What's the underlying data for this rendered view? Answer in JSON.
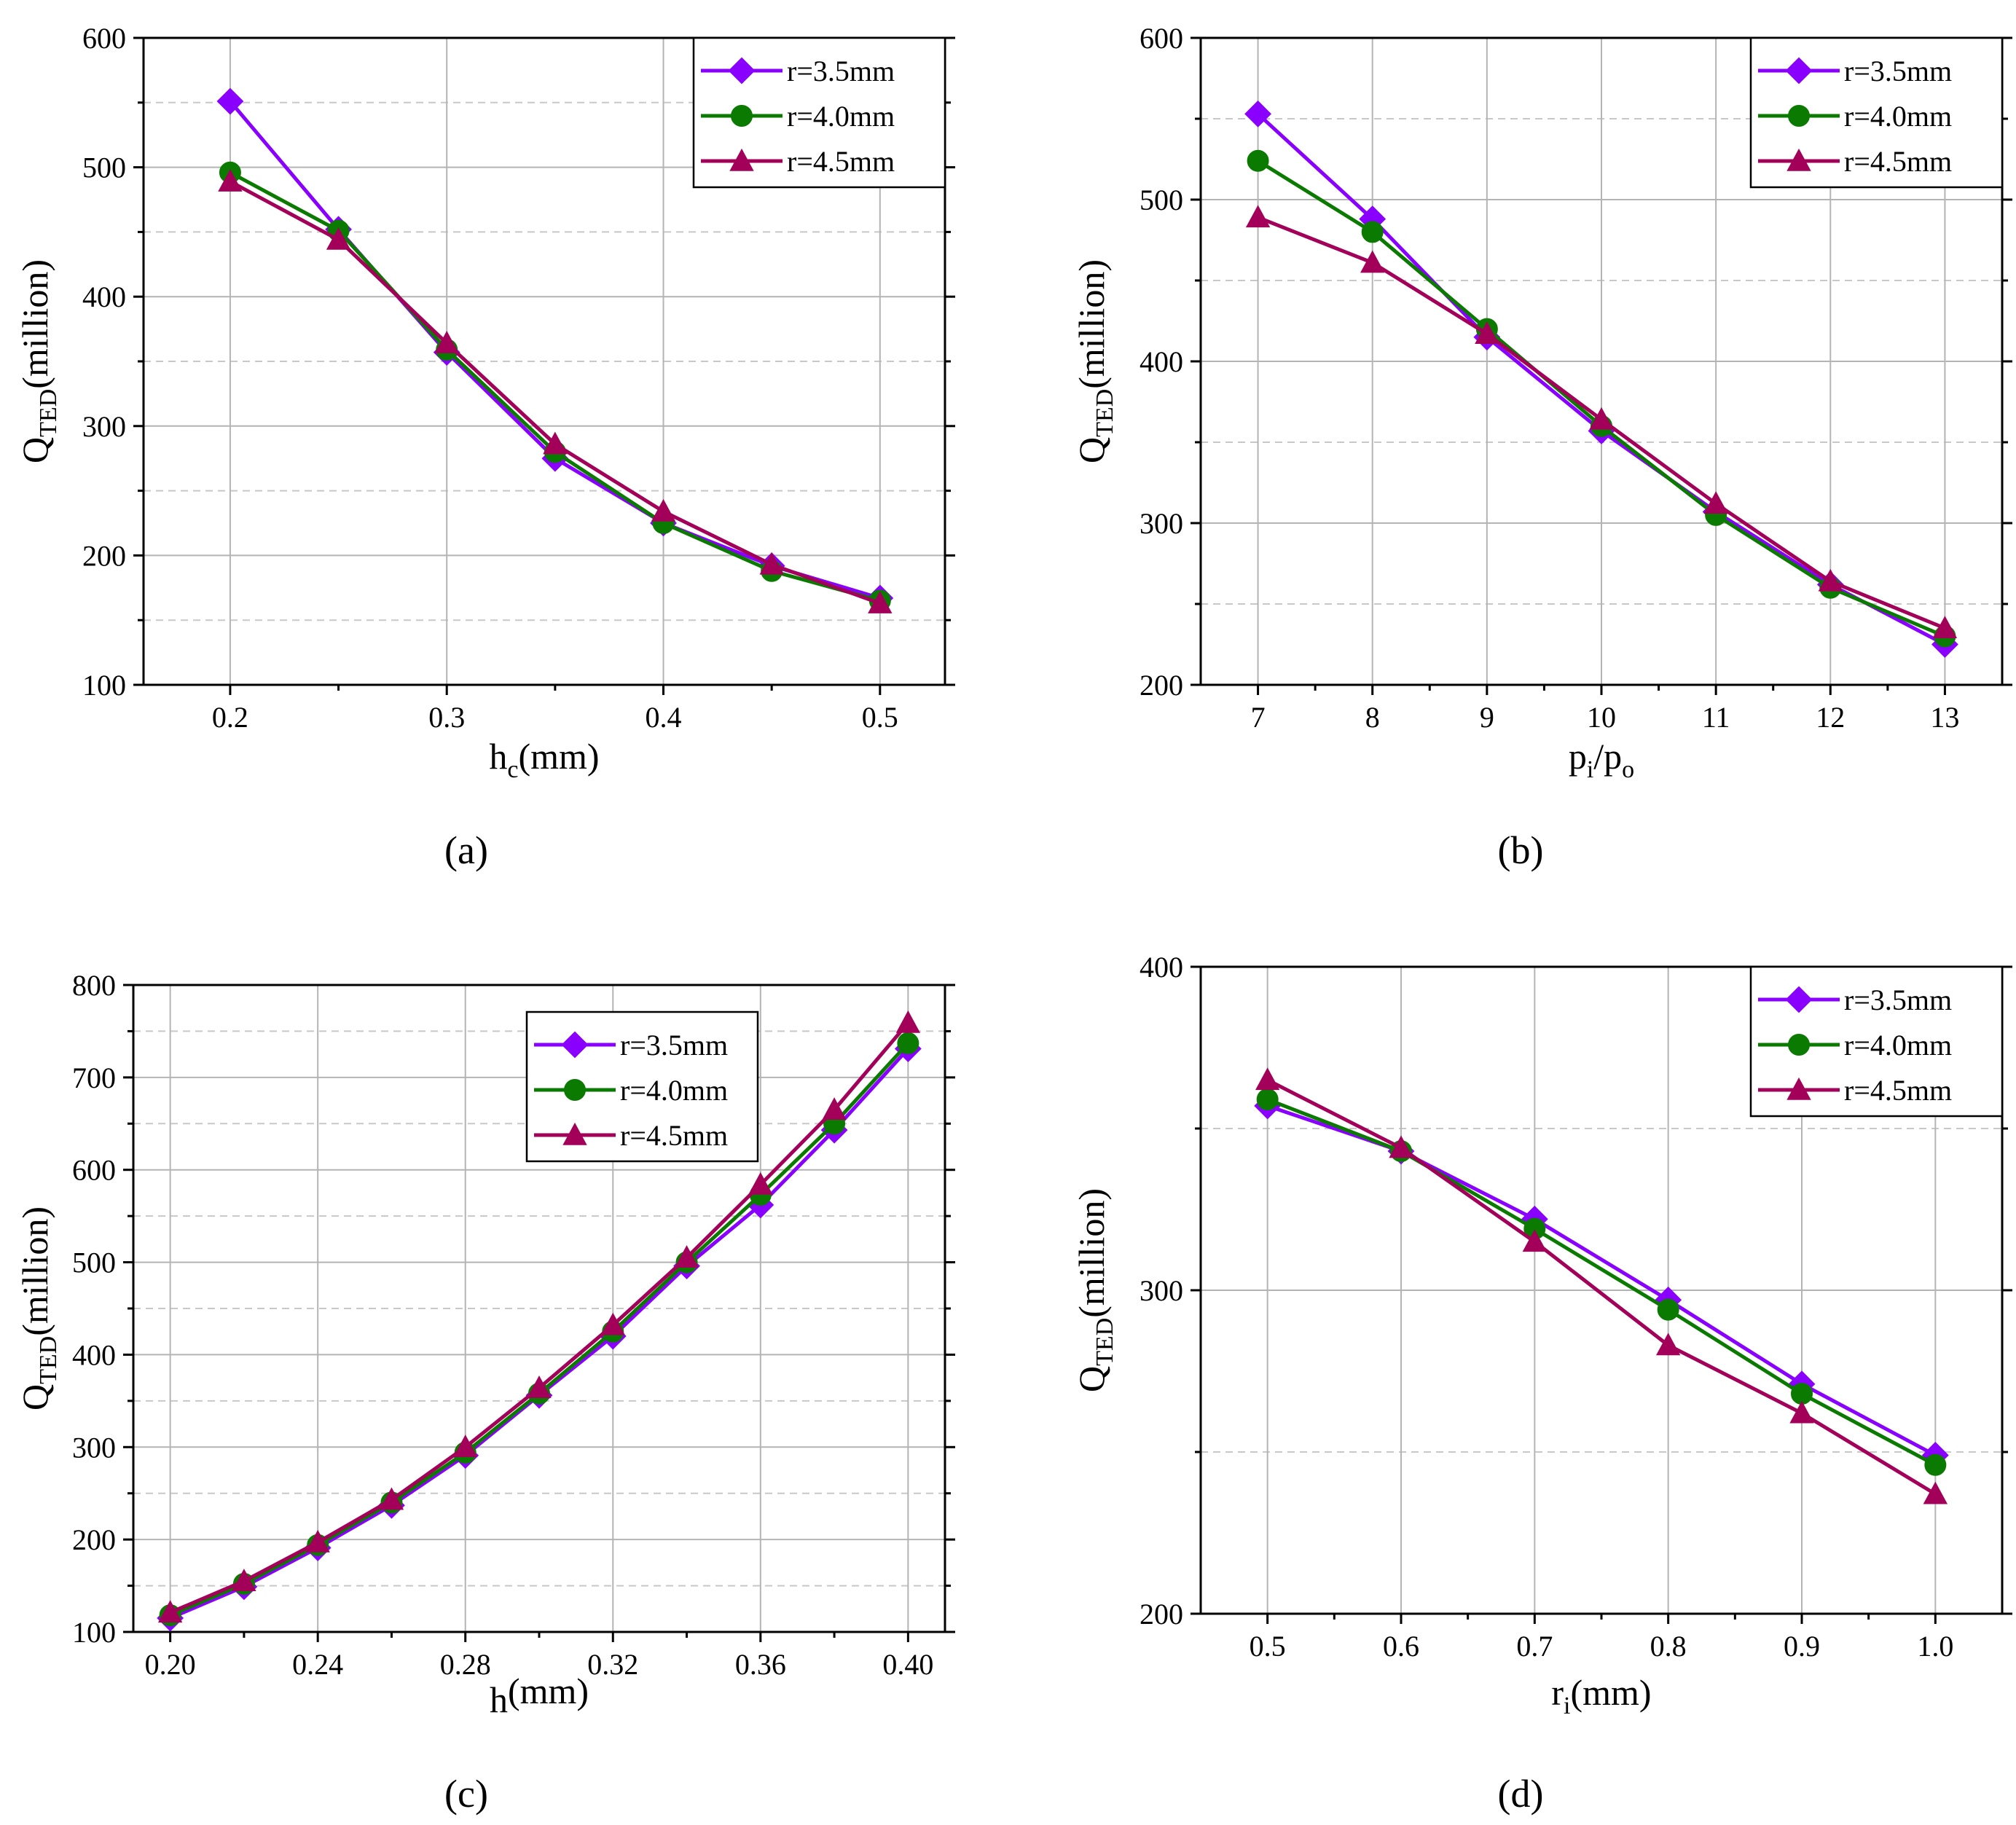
{
  "chart_data": [
    {
      "type": "line",
      "panel_label": "(a)",
      "xlabel": {
        "main": "h",
        "sub": "c",
        "unit": "(mm)"
      },
      "ylabel": {
        "main": "Q",
        "sub": "TED",
        "unit": "(million)"
      },
      "xlim": [
        0.16,
        0.53
      ],
      "ylim": [
        100,
        600
      ],
      "xticks": [
        0.2,
        0.3,
        0.4,
        0.5
      ],
      "xtick_labels": [
        "0.2",
        "0.3",
        "0.4",
        "0.5"
      ],
      "yticks": [
        100,
        200,
        300,
        400,
        500,
        600
      ],
      "ytick_labels": [
        "100",
        "200",
        "300",
        "400",
        "500",
        "600"
      ],
      "yminor": [
        150,
        250,
        350,
        450,
        550
      ],
      "legend": "top-right",
      "x": [
        0.2,
        0.25,
        0.3,
        0.35,
        0.4,
        0.45,
        0.5
      ],
      "series": [
        {
          "name": "r=3.5mm",
          "values": [
            551,
            452,
            357,
            275,
            225,
            192,
            167
          ]
        },
        {
          "name": "r=4.0mm",
          "values": [
            496,
            451,
            359,
            280,
            225,
            188,
            165
          ]
        },
        {
          "name": "r=4.5mm",
          "values": [
            489,
            444,
            364,
            286,
            234,
            193,
            163
          ]
        }
      ]
    },
    {
      "type": "line",
      "panel_label": "(b)",
      "xlabel": {
        "main": "p",
        "sub": "i",
        "mid": "/p",
        "sub2": "o"
      },
      "ylabel": {
        "main": "Q",
        "sub": "TED",
        "unit": "(million)"
      },
      "xlim": [
        6.5,
        13.5
      ],
      "ylim": [
        200,
        600
      ],
      "xticks": [
        7,
        8,
        9,
        10,
        11,
        12,
        13
      ],
      "xtick_labels": [
        "7",
        "8",
        "9",
        "10",
        "11",
        "12",
        "13"
      ],
      "yticks": [
        200,
        300,
        400,
        500,
        600
      ],
      "ytick_labels": [
        "200",
        "300",
        "400",
        "500",
        "600"
      ],
      "yminor": [
        250,
        350,
        450,
        550
      ],
      "legend": "top-right",
      "x": [
        7,
        8,
        9,
        10,
        11,
        12,
        13
      ],
      "series": [
        {
          "name": "r=3.5mm",
          "values": [
            553,
            488,
            415,
            357,
            307,
            262,
            225
          ]
        },
        {
          "name": "r=4.0mm",
          "values": [
            524,
            480,
            420,
            360,
            305,
            260,
            230
          ]
        },
        {
          "name": "r=4.5mm",
          "values": [
            489,
            461,
            417,
            364,
            312,
            264,
            235
          ]
        }
      ]
    },
    {
      "type": "line",
      "panel_label": "(c)",
      "xlabel": {
        "main": "h",
        "unit": "(mm)"
      },
      "ylabel": {
        "main": "Q",
        "sub": "TED",
        "unit": "(million)"
      },
      "xlim": [
        0.19,
        0.41
      ],
      "ylim": [
        100,
        800
      ],
      "xticks": [
        0.2,
        0.24,
        0.28,
        0.32,
        0.36,
        0.4
      ],
      "xtick_labels": [
        "0.20",
        "0.24",
        "0.28",
        "0.32",
        "0.36",
        "0.40"
      ],
      "yticks": [
        100,
        200,
        300,
        400,
        500,
        600,
        700,
        800
      ],
      "ytick_labels": [
        "100",
        "200",
        "300",
        "400",
        "500",
        "600",
        "700",
        "800"
      ],
      "yminor": [
        150,
        250,
        350,
        450,
        550,
        650,
        750
      ],
      "legend": "top-center",
      "x": [
        0.2,
        0.22,
        0.24,
        0.26,
        0.28,
        0.3,
        0.32,
        0.34,
        0.36,
        0.38,
        0.4
      ],
      "series": [
        {
          "name": "r=3.5mm",
          "values": [
            115,
            149,
            191,
            237,
            291,
            356,
            420,
            496,
            562,
            643,
            731
          ]
        },
        {
          "name": "r=4.0mm",
          "values": [
            118,
            152,
            194,
            240,
            294,
            358,
            425,
            500,
            573,
            650,
            737
          ]
        },
        {
          "name": "r=4.5mm",
          "values": [
            121,
            155,
            197,
            243,
            300,
            364,
            432,
            505,
            584,
            665,
            759
          ]
        }
      ]
    },
    {
      "type": "line",
      "panel_label": "(d)",
      "xlabel": {
        "main": "r",
        "sub": "i",
        "unit": "(mm)"
      },
      "ylabel": {
        "main": "Q",
        "sub": "TED",
        "unit": "(million)"
      },
      "xlim": [
        0.45,
        1.05
      ],
      "ylim": [
        200,
        400
      ],
      "xticks": [
        0.5,
        0.6,
        0.7,
        0.8,
        0.9,
        1.0
      ],
      "xtick_labels": [
        "0.5",
        "0.6",
        "0.7",
        "0.8",
        "0.9",
        "1.0"
      ],
      "yticks": [
        200,
        300,
        400
      ],
      "ytick_labels": [
        "200",
        "300",
        "400"
      ],
      "yminor": [
        250,
        350
      ],
      "legend": "top-right",
      "x": [
        0.5,
        0.6,
        0.7,
        0.8,
        0.9,
        1.0
      ],
      "series": [
        {
          "name": "r=3.5mm",
          "values": [
            357,
            343,
            322,
            297,
            271,
            249
          ]
        },
        {
          "name": "r=4.0mm",
          "values": [
            359,
            343,
            319,
            294,
            268,
            246
          ]
        },
        {
          "name": "r=4.5mm",
          "values": [
            365,
            344,
            315,
            283,
            262,
            237
          ]
        }
      ]
    }
  ],
  "colors": {
    "r=3.5mm": "#8a00ff",
    "r=4.0mm": "#0a7a00",
    "r=4.5mm": "#a3005a",
    "grid_major": "#b4b4b4",
    "grid_minor": "#c8c8c8"
  },
  "markers": {
    "r=3.5mm": "diamond",
    "r=4.0mm": "circle",
    "r=4.5mm": "triangle"
  }
}
